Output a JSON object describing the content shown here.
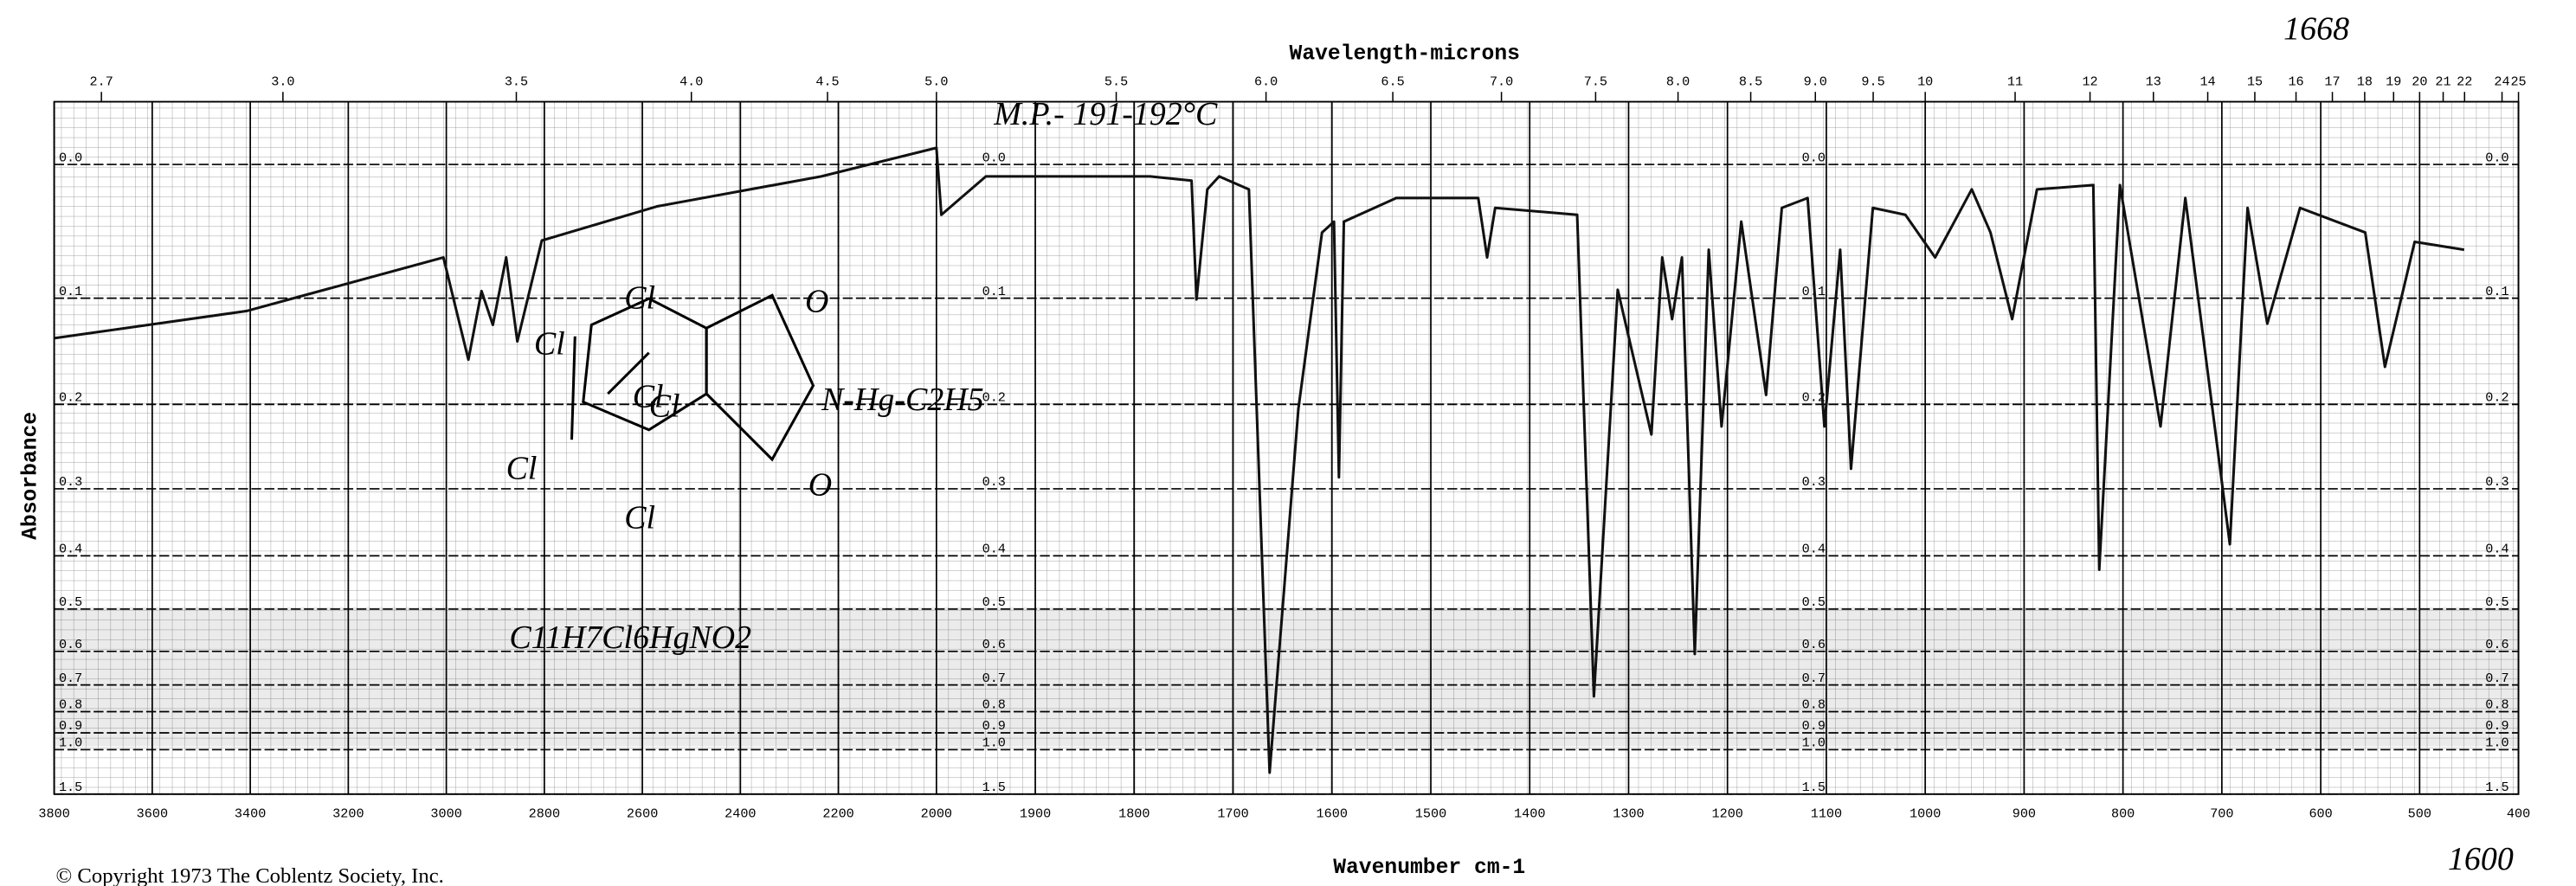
{
  "chart_data": {
    "type": "line",
    "title": "Wavelength-microns",
    "x_label": "Wavenumber cm-1",
    "y_label": "Absorbance",
    "y_scale": "absorbance",
    "x_break": 2000,
    "xlim": [
      3800,
      400
    ],
    "xticks": [
      3800,
      3600,
      3400,
      3200,
      3000,
      2800,
      2600,
      2400,
      2200,
      2000,
      1900,
      1800,
      1700,
      1600,
      1500,
      1400,
      1300,
      1200,
      1100,
      1000,
      900,
      800,
      700,
      600,
      500,
      400
    ],
    "x2ticks": [
      2.7,
      {
        "value": 3,
        "label": "3.0"
      },
      3.5,
      {
        "value": 4,
        "label": "4.0"
      },
      4.5,
      {
        "value": 5,
        "label": "5.0"
      },
      5.5,
      {
        "value": 6,
        "label": "6.0"
      },
      6.5,
      {
        "value": 7,
        "label": "7.0"
      },
      7.5,
      {
        "value": 8,
        "label": "8.0"
      },
      8.5,
      {
        "value": 9,
        "label": "9.0"
      },
      9.5,
      10,
      11,
      12,
      13,
      14,
      15,
      16,
      17,
      18,
      19,
      20,
      21,
      22,
      24,
      25
    ],
    "ylim": [
      -0.04,
      1.5
    ],
    "yticks": [
      {
        "value": 0,
        "label": "0.0"
      },
      0.1,
      0.2,
      0.3,
      0.4,
      0.5,
      0.6,
      0.7,
      0.8,
      0.9,
      {
        "value": 1,
        "label": "1.0"
      },
      1.5
    ],
    "grid": true,
    "color": "#111111",
    "x": [
      3800,
      3408,
      3006,
      2955,
      2928,
      2905,
      2878,
      2855,
      2805,
      2570,
      2235,
      2000,
      1995,
      1950,
      1784,
      1742,
      1737,
      1726,
      1714,
      1684,
      1663,
      1634,
      1610,
      1598,
      1593,
      1588,
      1535,
      1452,
      1443,
      1435,
      1352,
      1335,
      1311,
      1277,
      1266,
      1256,
      1246,
      1233,
      1219,
      1206,
      1186,
      1161,
      1145,
      1119,
      1102,
      1086,
      1075,
      1053,
      1020,
      990,
      953,
      934,
      912,
      887,
      830,
      824,
      803,
      762,
      737,
      692,
      674,
      654,
      621,
      555,
      535,
      505,
      455
    ],
    "values": [
      0.135,
      0.111,
      0.067,
      0.155,
      0.094,
      0.123,
      0.067,
      0.138,
      0.054,
      0.029,
      0.008,
      -0.011,
      0.035,
      0.008,
      0.008,
      0.011,
      0.101,
      0.017,
      0.008,
      0.017,
      1.19,
      0.205,
      0.048,
      0.04,
      0.285,
      0.04,
      0.023,
      0.023,
      0.067,
      0.03,
      0.035,
      0.74,
      0.093,
      0.233,
      0.067,
      0.118,
      0.067,
      0.607,
      0.061,
      0.224,
      0.04,
      0.19,
      0.03,
      0.023,
      0.224,
      0.061,
      0.274,
      0.03,
      0.035,
      0.067,
      0.017,
      0.048,
      0.118,
      0.017,
      0.014,
      0.424,
      0.014,
      0.224,
      0.023,
      0.381,
      0.03,
      0.122,
      0.03,
      0.048,
      0.162,
      0.055,
      0.061
    ],
    "annotations": [
      "M.P.- 191-192°C",
      "Cl",
      "Cl",
      "Cl",
      "Cl",
      "Cl",
      "Cl",
      "O",
      "O",
      "N-Hg-C2H5",
      "C11H7Cl6HgNO2",
      "1668",
      "1600"
    ],
    "copyright": "© Copyright 1973  The Coblentz Society, Inc."
  }
}
